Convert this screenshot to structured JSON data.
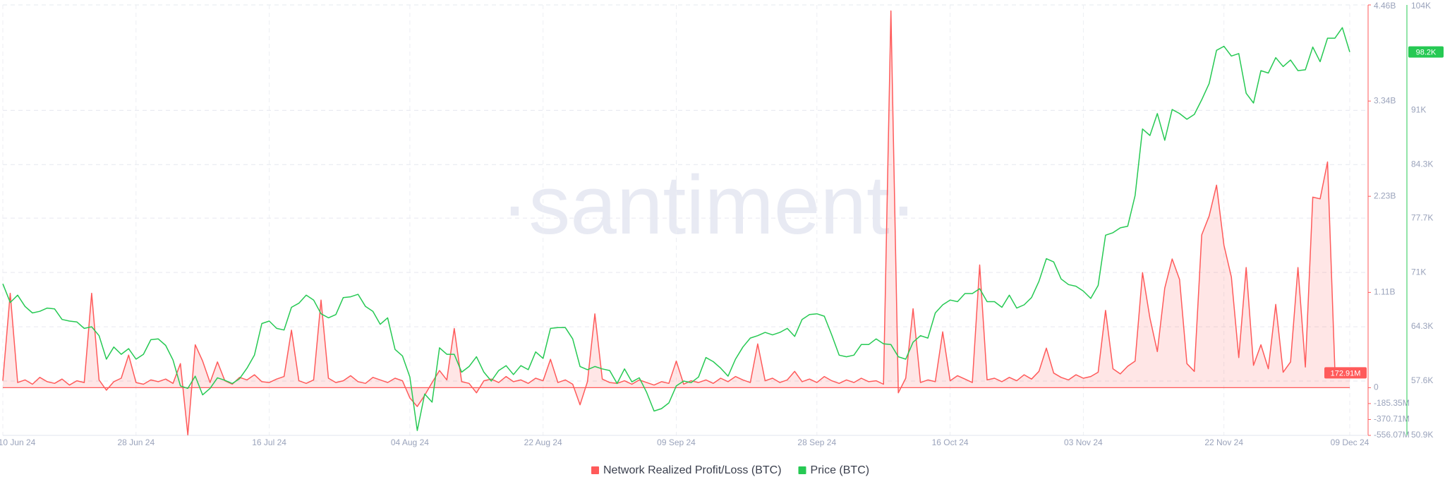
{
  "chart_data": {
    "type": "line",
    "watermark": "·santiment·",
    "categories": [
      "10 Jun 24",
      null,
      null,
      null,
      null,
      null,
      null,
      null,
      null,
      null,
      null,
      null,
      null,
      null,
      null,
      null,
      null,
      null,
      "28 Jun 24",
      null,
      null,
      null,
      null,
      null,
      null,
      null,
      null,
      null,
      null,
      null,
      null,
      null,
      null,
      null,
      null,
      null,
      "16 Jul 24",
      null,
      null,
      null,
      null,
      null,
      null,
      null,
      null,
      null,
      null,
      null,
      null,
      null,
      null,
      null,
      null,
      null,
      null,
      "04 Aug 24",
      null,
      null,
      null,
      null,
      null,
      null,
      null,
      null,
      null,
      null,
      null,
      null,
      null,
      null,
      null,
      null,
      null,
      "22 Aug 24",
      null,
      null,
      null,
      null,
      null,
      null,
      null,
      null,
      null,
      null,
      null,
      null,
      null,
      null,
      null,
      null,
      null,
      "09 Sep 24",
      null,
      null,
      null,
      null,
      null,
      null,
      null,
      null,
      null,
      null,
      null,
      null,
      null,
      null,
      null,
      null,
      null,
      null,
      "28 Sep 24",
      null,
      null,
      null,
      null,
      null,
      null,
      null,
      null,
      null,
      null,
      null,
      null,
      null,
      null,
      null,
      null,
      null,
      "16 Oct 24",
      null,
      null,
      null,
      null,
      null,
      null,
      null,
      null,
      null,
      null,
      null,
      null,
      null,
      null,
      null,
      null,
      null,
      "03 Nov 24",
      null,
      null,
      null,
      null,
      null,
      null,
      null,
      null,
      null,
      null,
      null,
      null,
      null,
      null,
      null,
      null,
      null,
      null,
      "22 Nov 24",
      null,
      null,
      null,
      null,
      null,
      null,
      null,
      null,
      null,
      null,
      null,
      null,
      null,
      null,
      null,
      null,
      "09 Dec 24"
    ],
    "ylim": [
      -556070000.0,
      4460000000.0
    ],
    "yticks": [
      {
        "value": 4460000000.0,
        "label": "4.46B"
      },
      {
        "value": 3340000000.0,
        "label": "3.34B"
      },
      {
        "value": 2230000000.0,
        "label": "2.23B"
      },
      {
        "value": 1110000000.0,
        "label": "1.11B"
      },
      0,
      {
        "value": -185350000.0,
        "label": "-185.35M"
      },
      {
        "value": -370710000.0,
        "label": "-370.71M"
      },
      {
        "value": -556070000.0,
        "label": "-556.07M"
      }
    ],
    "y2lim": [
      50900,
      104000
    ],
    "y2ticks": [
      {
        "value": 104000,
        "label": "104K"
      },
      {
        "value": 91000,
        "label": "91K"
      },
      {
        "value": 84300,
        "label": "84.3K"
      },
      {
        "value": 77700,
        "label": "77.7K"
      },
      {
        "value": 71000,
        "label": "71K"
      },
      {
        "value": 64300,
        "label": "64.3K"
      },
      {
        "value": 57600,
        "label": "57.6K"
      },
      {
        "value": 50900,
        "label": "50.9K"
      }
    ],
    "grid": true,
    "series": [
      {
        "name": "Network Realized Profit/Loss (BTC)",
        "color": "#ff5a5a",
        "last_value_label": "172.91M",
        "values": [
          80000000.0,
          1100000000.0,
          60000000.0,
          90000000.0,
          40000000.0,
          120000000.0,
          70000000.0,
          50000000.0,
          100000000.0,
          30000000.0,
          80000000.0,
          60000000.0,
          1100000000.0,
          90000000.0,
          -30000000.0,
          70000000.0,
          110000000.0,
          380000000.0,
          60000000.0,
          40000000.0,
          90000000.0,
          70000000.0,
          100000000.0,
          50000000.0,
          280000000.0,
          -550000000.0,
          500000000.0,
          310000000.0,
          60000000.0,
          300000000.0,
          80000000.0,
          40000000.0,
          120000000.0,
          90000000.0,
          150000000.0,
          70000000.0,
          60000000.0,
          100000000.0,
          130000000.0,
          670000000.0,
          80000000.0,
          50000000.0,
          90000000.0,
          1020000000.0,
          110000000.0,
          60000000.0,
          80000000.0,
          140000000.0,
          70000000.0,
          50000000.0,
          120000000.0,
          90000000.0,
          60000000.0,
          110000000.0,
          80000000.0,
          -120000000.0,
          -220000000.0,
          -90000000.0,
          60000000.0,
          200000000.0,
          90000000.0,
          690000000.0,
          70000000.0,
          50000000.0,
          -60000000.0,
          80000000.0,
          100000000.0,
          60000000.0,
          130000000.0,
          70000000.0,
          90000000.0,
          50000000.0,
          110000000.0,
          80000000.0,
          330000000.0,
          60000000.0,
          90000000.0,
          40000000.0,
          -200000000.0,
          70000000.0,
          860000000.0,
          100000000.0,
          60000000.0,
          50000000.0,
          80000000.0,
          40000000.0,
          90000000.0,
          60000000.0,
          30000000.0,
          70000000.0,
          50000000.0,
          310000000.0,
          40000000.0,
          80000000.0,
          60000000.0,
          90000000.0,
          50000000.0,
          110000000.0,
          70000000.0,
          130000000.0,
          90000000.0,
          60000000.0,
          510000000.0,
          80000000.0,
          110000000.0,
          60000000.0,
          90000000.0,
          190000000.0,
          70000000.0,
          100000000.0,
          60000000.0,
          130000000.0,
          80000000.0,
          50000000.0,
          90000000.0,
          60000000.0,
          110000000.0,
          70000000.0,
          80000000.0,
          40000000.0,
          4390000000.0,
          -60000000.0,
          110000000.0,
          920000000.0,
          60000000.0,
          90000000.0,
          70000000.0,
          650000000.0,
          80000000.0,
          140000000.0,
          100000000.0,
          60000000.0,
          1430000000.0,
          90000000.0,
          110000000.0,
          70000000.0,
          120000000.0,
          80000000.0,
          150000000.0,
          100000000.0,
          190000000.0,
          460000000.0,
          170000000.0,
          120000000.0,
          90000000.0,
          150000000.0,
          110000000.0,
          130000000.0,
          180000000.0,
          900000000.0,
          220000000.0,
          160000000.0,
          250000000.0,
          310000000.0,
          1340000000.0,
          810000000.0,
          420000000.0,
          1160000000.0,
          1500000000.0,
          1260000000.0,
          280000000.0,
          190000000.0,
          1780000000.0,
          2000000000.0,
          2360000000.0,
          1660000000.0,
          1290000000.0,
          350000000.0,
          1400000000.0,
          260000000.0,
          500000000.0,
          220000000.0,
          970000000.0,
          180000000.0,
          300000000.0,
          1400000000.0,
          240000000.0,
          2220000000.0,
          2200000000.0,
          2630000000.0,
          190000000.0,
          120000000.0,
          172910000.0
        ]
      },
      {
        "name": "Price (BTC)",
        "color": "#26c953",
        "axis": "y2",
        "last_value_label": "98.2K",
        "values": [
          69600,
          67300,
          68200,
          66800,
          66000,
          66200,
          66600,
          66500,
          65200,
          65000,
          64900,
          64100,
          64300,
          63200,
          60300,
          61800,
          60900,
          61600,
          60300,
          60900,
          62700,
          62800,
          62000,
          60200,
          57000,
          56700,
          58200,
          55900,
          56700,
          58000,
          57700,
          57300,
          57900,
          59200,
          60800,
          64700,
          65000,
          64100,
          63900,
          66700,
          67200,
          68200,
          67600,
          65900,
          65400,
          65800,
          67900,
          68000,
          68300,
          66800,
          66200,
          64600,
          65400,
          61500,
          60700,
          58100,
          51500,
          56000,
          55000,
          61700,
          60900,
          60900,
          58700,
          59400,
          60600,
          58700,
          57600,
          58900,
          59500,
          58400,
          59500,
          59000,
          61200,
          60400,
          64100,
          64200,
          64200,
          62800,
          59400,
          59000,
          59400,
          59100,
          58900,
          57300,
          59100,
          57500,
          58000,
          56200,
          53900,
          54200,
          54900,
          57000,
          57600,
          57400,
          58100,
          60500,
          60000,
          59200,
          58200,
          60300,
          61800,
          62900,
          63200,
          63600,
          63300,
          63600,
          64100,
          63100,
          65200,
          65800,
          65900,
          65600,
          63300,
          60800,
          60600,
          60800,
          62100,
          62100,
          62800,
          62200,
          62100,
          60600,
          60300,
          62400,
          63200,
          62900,
          66000,
          67000,
          67600,
          67400,
          68400,
          68400,
          69000,
          67400,
          67400,
          66700,
          68200,
          66600,
          67000,
          67900,
          69900,
          72700,
          72300,
          70200,
          69500,
          69300,
          68700,
          67800,
          69400,
          75600,
          75900,
          76500,
          76700,
          80500,
          88700,
          87900,
          90600,
          87300,
          91100,
          90600,
          89900,
          90500,
          92300,
          94300,
          98400,
          98900,
          97700,
          98000,
          93100,
          91900,
          95900,
          95600,
          97500,
          96400,
          97200,
          95900,
          96000,
          98800,
          97000,
          99900,
          99900,
          101200,
          98200
        ]
      }
    ]
  }
}
